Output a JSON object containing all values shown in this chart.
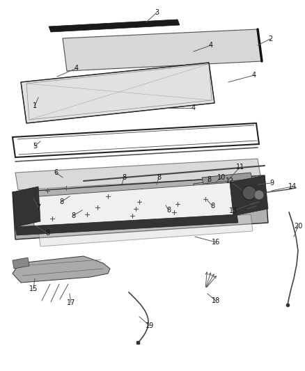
{
  "background_color": "#ffffff",
  "fig_width": 4.38,
  "fig_height": 5.33,
  "dpi": 100,
  "line_color": "#333333",
  "dark_color": "#111111",
  "gray_fill": "#c8c8c8",
  "light_fill": "#e8e8e8"
}
